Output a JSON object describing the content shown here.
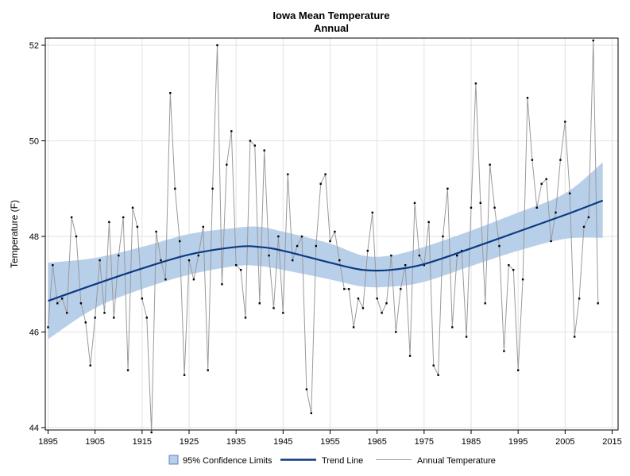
{
  "chart_data": {
    "type": "line",
    "title": "Iowa Mean Temperature",
    "subtitle": "Annual",
    "xlabel": "",
    "ylabel": "Temperature (F)",
    "xlim": [
      1895,
      2015
    ],
    "ylim": [
      44,
      52
    ],
    "x_ticks": [
      1895,
      1905,
      1915,
      1925,
      1935,
      1945,
      1955,
      1965,
      1975,
      1985,
      1995,
      2005,
      2015
    ],
    "y_ticks": [
      44,
      46,
      48,
      50,
      52
    ],
    "grid": true,
    "legend_position": "bottom",
    "legend": {
      "band": "95% Confidence Limits",
      "trend": "Trend Line",
      "annual": "Annual Temperature"
    },
    "colors": {
      "band": "#b8cfea",
      "trend": "#0b3a82",
      "annual": "#9a9a9a",
      "marker": "#000000",
      "grid": "#e2e2e2"
    },
    "years_start": 1895,
    "annual_temperature": [
      46.1,
      47.4,
      46.6,
      46.7,
      46.4,
      48.4,
      48.0,
      46.6,
      46.2,
      45.3,
      46.3,
      47.5,
      46.4,
      48.3,
      46.3,
      47.6,
      48.4,
      45.2,
      48.6,
      48.2,
      46.7,
      46.3,
      43.9,
      48.1,
      47.5,
      47.1,
      51.0,
      49.0,
      47.9,
      45.1,
      47.5,
      47.1,
      47.6,
      48.2,
      45.2,
      49.0,
      52.0,
      47.0,
      49.5,
      50.2,
      47.4,
      47.3,
      46.3,
      50.0,
      49.9,
      46.6,
      49.8,
      47.6,
      46.5,
      48.0,
      46.4,
      49.3,
      47.5,
      47.8,
      48.0,
      44.8,
      44.3,
      47.8,
      49.1,
      49.3,
      47.9,
      48.1,
      47.5,
      46.9,
      46.9,
      46.1,
      46.7,
      46.5,
      47.7,
      48.5,
      46.7,
      46.4,
      46.6,
      47.6,
      46.0,
      46.9,
      47.4,
      45.5,
      48.7,
      47.6,
      47.4,
      48.3,
      45.3,
      45.1,
      48.0,
      49.0,
      46.1,
      47.6,
      47.7,
      45.9,
      48.6,
      51.2,
      48.7,
      46.6,
      49.5,
      48.6,
      47.8,
      45.6,
      47.4,
      47.3,
      45.2,
      47.1,
      50.9,
      49.6,
      48.6,
      49.1,
      49.2,
      47.9,
      48.5,
      49.6,
      50.4,
      48.9,
      45.9,
      46.7,
      48.2,
      48.4,
      52.1,
      46.6
    ],
    "trend_line": {
      "x": [
        1895,
        1905,
        1915,
        1925,
        1935,
        1940,
        1945,
        1955,
        1962,
        1968,
        1975,
        1985,
        1995,
        2005,
        2013
      ],
      "y": [
        46.65,
        47.0,
        47.33,
        47.62,
        47.78,
        47.78,
        47.7,
        47.45,
        47.3,
        47.3,
        47.42,
        47.75,
        48.1,
        48.45,
        48.75
      ]
    },
    "confidence_limits": {
      "x": [
        1895,
        1905,
        1915,
        1925,
        1935,
        1940,
        1945,
        1955,
        1962,
        1968,
        1975,
        1985,
        1995,
        2005,
        2013
      ],
      "lower": [
        45.85,
        46.5,
        46.9,
        47.2,
        47.38,
        47.38,
        47.3,
        47.1,
        46.95,
        46.95,
        47.05,
        47.38,
        47.7,
        47.95,
        47.97
      ],
      "upper": [
        47.45,
        47.55,
        47.78,
        48.05,
        48.18,
        48.2,
        48.1,
        47.85,
        47.6,
        47.6,
        47.78,
        48.12,
        48.5,
        48.9,
        49.55
      ]
    }
  }
}
